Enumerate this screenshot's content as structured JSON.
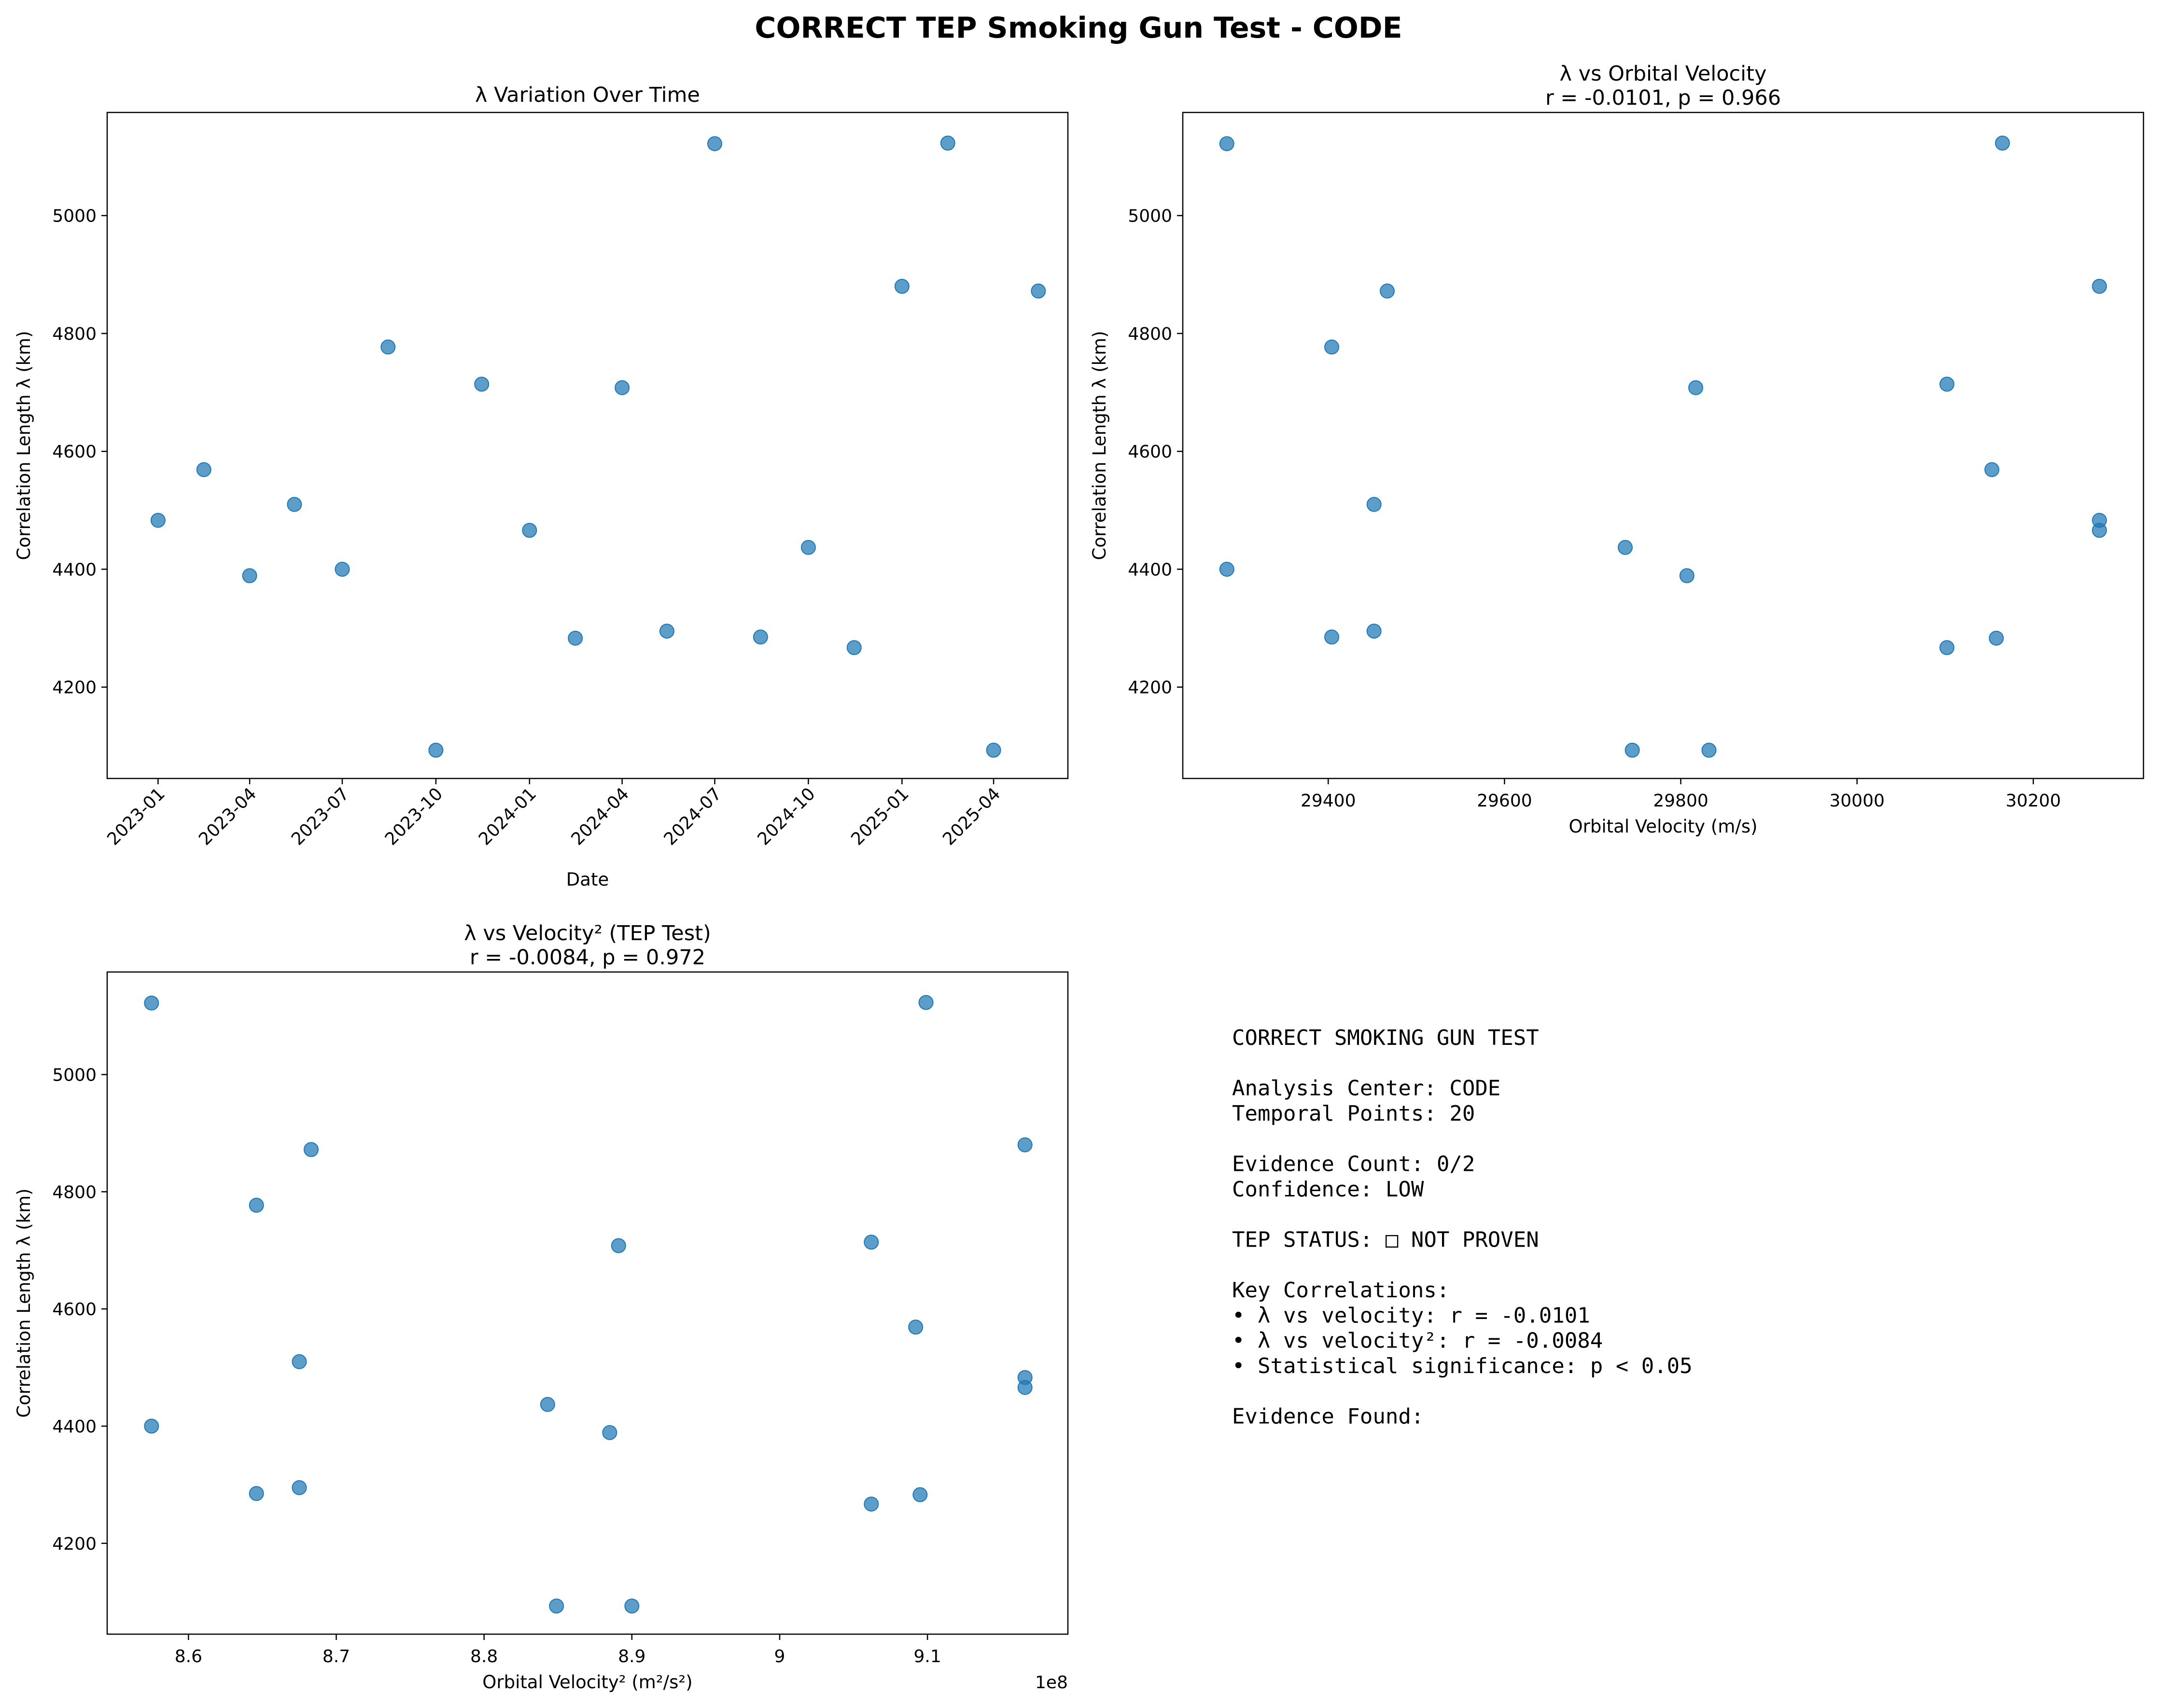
{
  "figure": {
    "title": "CORRECT TEP Smoking Gun Test - CODE"
  },
  "chart_data": [
    {
      "type": "scatter",
      "title": "λ Variation Over Time",
      "subtitle": "",
      "xlabel": "Date",
      "ylabel": "Correlation Length λ (km)",
      "x_is_date": true,
      "x_ticks": [
        "2023-01",
        "2023-04",
        "2023-07",
        "2023-10",
        "2024-01",
        "2024-04",
        "2024-07",
        "2024-10",
        "2025-01",
        "2025-04"
      ],
      "y_ticks": [
        4200,
        4400,
        4600,
        4800,
        5000
      ],
      "xlim": [
        "2022-11-12",
        "2025-06-13"
      ],
      "ylim": [
        4045,
        5175
      ],
      "grid": false,
      "color": "#1f77b4",
      "points": [
        {
          "x": "2023-01-01",
          "y": 4483
        },
        {
          "x": "2023-02-15",
          "y": 4569
        },
        {
          "x": "2023-04-01",
          "y": 4389
        },
        {
          "x": "2023-05-15",
          "y": 4510
        },
        {
          "x": "2023-07-01",
          "y": 4400
        },
        {
          "x": "2023-08-15",
          "y": 4777
        },
        {
          "x": "2023-10-01",
          "y": 4093
        },
        {
          "x": "2023-11-15",
          "y": 4714
        },
        {
          "x": "2024-01-01",
          "y": 4466
        },
        {
          "x": "2024-02-15",
          "y": 4283
        },
        {
          "x": "2024-04-01",
          "y": 4708
        },
        {
          "x": "2024-05-15",
          "y": 4295
        },
        {
          "x": "2024-07-01",
          "y": 5122
        },
        {
          "x": "2024-08-15",
          "y": 4285
        },
        {
          "x": "2024-10-01",
          "y": 4437
        },
        {
          "x": "2024-11-15",
          "y": 4267
        },
        {
          "x": "2025-01-01",
          "y": 4880
        },
        {
          "x": "2025-02-15",
          "y": 5123
        },
        {
          "x": "2025-04-01",
          "y": 4093
        },
        {
          "x": "2025-05-15",
          "y": 4872
        }
      ]
    },
    {
      "type": "scatter",
      "title": "λ vs Orbital Velocity",
      "subtitle": "r = -0.0101, p = 0.966",
      "xlabel": "Orbital Velocity (m/s)",
      "ylabel": "Correlation Length λ (km)",
      "x_ticks": [
        29400,
        29600,
        29800,
        30000,
        30200
      ],
      "y_ticks": [
        4200,
        4400,
        4600,
        4800,
        5000
      ],
      "xlim": [
        29235,
        30325
      ],
      "ylim": [
        4045,
        5175
      ],
      "grid": false,
      "color": "#1f77b4",
      "points": [
        {
          "x": 29285,
          "y": 5122
        },
        {
          "x": 29285,
          "y": 4400
        },
        {
          "x": 29404,
          "y": 4777
        },
        {
          "x": 29404,
          "y": 4285
        },
        {
          "x": 29452,
          "y": 4510
        },
        {
          "x": 29452,
          "y": 4295
        },
        {
          "x": 29467,
          "y": 4872
        },
        {
          "x": 29737,
          "y": 4437
        },
        {
          "x": 29745,
          "y": 4093
        },
        {
          "x": 29807,
          "y": 4389
        },
        {
          "x": 29817,
          "y": 4708
        },
        {
          "x": 29832,
          "y": 4093
        },
        {
          "x": 30102,
          "y": 4714
        },
        {
          "x": 30102,
          "y": 4267
        },
        {
          "x": 30153,
          "y": 4569
        },
        {
          "x": 30158,
          "y": 4283
        },
        {
          "x": 30165,
          "y": 5123
        },
        {
          "x": 30275,
          "y": 4880
        },
        {
          "x": 30275,
          "y": 4483
        },
        {
          "x": 30275,
          "y": 4466
        }
      ]
    },
    {
      "type": "scatter",
      "title": "λ vs Velocity² (TEP Test)",
      "subtitle": "r = -0.0084, p = 0.972",
      "xlabel": "Orbital Velocity² (m²/s²)",
      "ylabel": "Correlation Length λ (km)",
      "x_offset_label": "1e8",
      "x_ticks": [
        8.6,
        8.7,
        8.8,
        8.9,
        9.0,
        9.1
      ],
      "y_ticks": [
        4200,
        4400,
        4600,
        4800,
        5000
      ],
      "xlim": [
        8.545,
        9.195
      ],
      "ylim": [
        4045,
        5175
      ],
      "grid": false,
      "color": "#1f77b4",
      "points": [
        {
          "x": 8.575,
          "y": 5122
        },
        {
          "x": 8.575,
          "y": 4400
        },
        {
          "x": 8.646,
          "y": 4777
        },
        {
          "x": 8.646,
          "y": 4285
        },
        {
          "x": 8.675,
          "y": 4510
        },
        {
          "x": 8.675,
          "y": 4295
        },
        {
          "x": 8.683,
          "y": 4872
        },
        {
          "x": 8.843,
          "y": 4437
        },
        {
          "x": 8.849,
          "y": 4093
        },
        {
          "x": 8.885,
          "y": 4389
        },
        {
          "x": 8.891,
          "y": 4708
        },
        {
          "x": 8.9,
          "y": 4093
        },
        {
          "x": 9.062,
          "y": 4714
        },
        {
          "x": 9.062,
          "y": 4267
        },
        {
          "x": 9.092,
          "y": 4569
        },
        {
          "x": 9.095,
          "y": 4283
        },
        {
          "x": 9.099,
          "y": 5123
        },
        {
          "x": 9.166,
          "y": 4880
        },
        {
          "x": 9.166,
          "y": 4483
        },
        {
          "x": 9.166,
          "y": 4466
        }
      ]
    }
  ],
  "summary": {
    "lines": [
      "CORRECT SMOKING GUN TEST",
      "",
      "Analysis Center: CODE",
      "Temporal Points: 20",
      "",
      "Evidence Count: 0/2",
      "Confidence: LOW",
      "",
      "TEP STATUS: □ NOT PROVEN",
      "",
      "Key Correlations:",
      "• λ vs velocity: r = -0.0101",
      "• λ vs velocity²: r = -0.0084",
      "• Statistical significance: p < 0.05",
      "",
      "Evidence Found:"
    ]
  }
}
